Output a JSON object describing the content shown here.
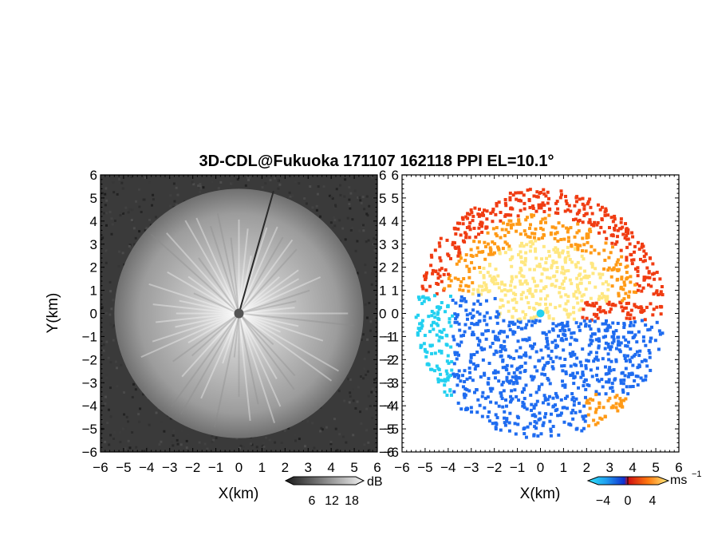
{
  "chart_data": {
    "type": "heatmap",
    "title": "3D-CDL@Fukuoka 171107 162118 PPI EL=10.1°",
    "panels": [
      {
        "name": "",
        "xlabel": "X(km)",
        "ylabel": "Y(km)",
        "xlim": [
          -6,
          6
        ],
        "ylim": [
          -6,
          6
        ],
        "xticks": [
          "−6",
          "−5",
          "−4",
          "−3",
          "−2",
          "−1",
          "0",
          "1",
          "2",
          "3",
          "4",
          "5",
          "6"
        ],
        "yticks": [
          "−6",
          "−5",
          "−4",
          "−3",
          "−2",
          "−1",
          "0",
          "1",
          "2",
          "3",
          "4",
          "5",
          "6"
        ],
        "colorbar": {
          "unit": "dB",
          "ticks": [
            "6",
            "12",
            "18"
          ],
          "colormap": "grayscale"
        },
        "data_radius_km": 5.4
      },
      {
        "name": "",
        "xlabel": "X(km)",
        "ylabel": "",
        "xlim": [
          -6,
          6
        ],
        "ylim": [
          -6,
          6
        ],
        "xticks": [
          "−6",
          "−5",
          "−4",
          "−3",
          "−2",
          "−1",
          "0",
          "1",
          "2",
          "3",
          "4",
          "5",
          "6"
        ],
        "yticks": [
          "−6",
          "−5",
          "−4",
          "−3",
          "−2",
          "−1",
          "0",
          "1",
          "2",
          "3",
          "4",
          "5",
          "6"
        ],
        "colorbar": {
          "unit": "ms",
          "unit_exp": "−1",
          "ticks": [
            "−4",
            "0",
            "4"
          ],
          "colormap": "cyan-blue-red-yellow"
        },
        "data_radius_km": 5.4
      }
    ]
  },
  "colors": {
    "gray_bg": "#3a3a3a",
    "cyan": "#22d0f0",
    "blue": "#1f6cf0",
    "red": "#f03c12",
    "orange": "#ff9a16",
    "yellow": "#ffe780"
  }
}
